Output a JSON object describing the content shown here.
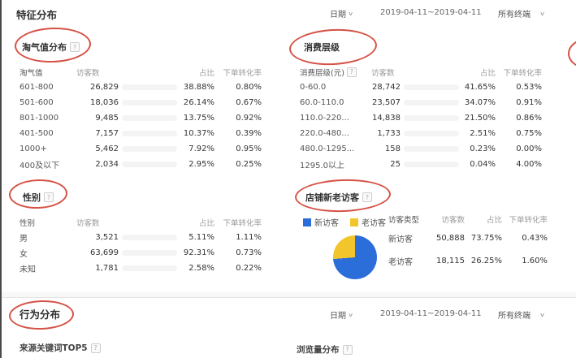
{
  "page": {
    "feature_header": "特征分布",
    "behavior_header": "行为分布"
  },
  "icons": {
    "help": "?",
    "chevron_down": "∨"
  },
  "filters": {
    "date_label": "日期",
    "date_range": "2019-04-11~2019-04-11",
    "terminal": "所有终端"
  },
  "annotations": {
    "color": "#ce3426",
    "circled_titles": [
      "淘气值分布",
      "消费层级",
      "性别",
      "店铺新老访客",
      "行为分布"
    ]
  },
  "sections": {
    "taoqi": {
      "title": "淘气值分布",
      "columns": [
        "淘气值",
        "访客数",
        "占比",
        "下单转化率"
      ],
      "rows": [
        {
          "range": "601-800",
          "visitors": "26,829",
          "bar_pct": 100,
          "share": "38.88%",
          "conversion": "0.80%"
        },
        {
          "range": "501-600",
          "visitors": "18,036",
          "bar_pct": 67,
          "share": "26.14%",
          "conversion": "0.67%"
        },
        {
          "range": "801-1000",
          "visitors": "9,485",
          "bar_pct": 35,
          "share": "13.75%",
          "conversion": "0.92%"
        },
        {
          "range": "401-500",
          "visitors": "7,157",
          "bar_pct": 27,
          "share": "10.37%",
          "conversion": "0.39%"
        },
        {
          "range": "1000+",
          "visitors": "5,462",
          "bar_pct": 20,
          "share": "7.92%",
          "conversion": "0.95%"
        },
        {
          "range": "400及以下",
          "visitors": "2,034",
          "bar_pct": 8,
          "share": "2.95%",
          "conversion": "0.25%"
        }
      ]
    },
    "consume": {
      "title": "消费层级",
      "columns": [
        "消费层级(元)",
        "访客数",
        "占比",
        "下单转化率"
      ],
      "rows": [
        {
          "range": "0-60.0",
          "visitors": "28,742",
          "bar_pct": 100,
          "share": "41.65%",
          "conversion": "0.53%"
        },
        {
          "range": "60.0-110.0",
          "visitors": "23,507",
          "bar_pct": 82,
          "share": "34.07%",
          "conversion": "0.91%"
        },
        {
          "range": "110.0-220...",
          "visitors": "14,838",
          "bar_pct": 52,
          "share": "21.50%",
          "conversion": "0.86%"
        },
        {
          "range": "220.0-480...",
          "visitors": "1,733",
          "bar_pct": 6,
          "share": "2.51%",
          "conversion": "0.75%"
        },
        {
          "range": "480.0-1295...",
          "visitors": "158",
          "bar_pct": 0.6,
          "share": "0.23%",
          "conversion": "0.00%"
        },
        {
          "range": "1295.0以上",
          "visitors": "25",
          "bar_pct": 0.2,
          "share": "0.04%",
          "conversion": "4.00%"
        }
      ]
    },
    "gender": {
      "title": "性别",
      "columns": [
        "性别",
        "访客数",
        "占比",
        "下单转化率"
      ],
      "rows": [
        {
          "range": "男",
          "visitors": "3,521",
          "bar_pct": 6,
          "share": "5.11%",
          "conversion": "1.11%"
        },
        {
          "range": "女",
          "visitors": "63,699",
          "bar_pct": 100,
          "share": "92.31%",
          "conversion": "0.73%"
        },
        {
          "range": "未知",
          "visitors": "1,781",
          "bar_pct": 3,
          "share": "2.58%",
          "conversion": "0.22%"
        }
      ]
    },
    "visitor_type": {
      "title": "店铺新老访客",
      "legend": [
        {
          "label": "新访客",
          "color": "#2b6dd9"
        },
        {
          "label": "老访客",
          "color": "#f3c52d"
        }
      ],
      "columns": [
        "访客类型",
        "访客数",
        "占比",
        "下单转化率"
      ],
      "rows": [
        {
          "type": "新访客",
          "visitors": "50,888",
          "share": "73.75%",
          "conversion": "0.43%"
        },
        {
          "type": "老访客",
          "visitors": "18,115",
          "share": "26.25%",
          "conversion": "1.60%"
        }
      ]
    },
    "keywords_title": "来源关键词TOP5",
    "pageview_title": "浏览量分布"
  },
  "chart_data": [
    {
      "type": "pie",
      "title": "店铺新老访客",
      "labels": [
        "新访客",
        "老访客"
      ],
      "values": [
        73.75,
        26.25
      ],
      "colors": [
        "#2b6dd9",
        "#f3c52d"
      ],
      "legend_position": "top-left"
    },
    {
      "type": "bar",
      "title": "淘气值分布",
      "categories": [
        "601-800",
        "501-600",
        "801-1000",
        "401-500",
        "1000+",
        "400及以下"
      ],
      "values": [
        26829,
        18036,
        9485,
        7157,
        5462,
        2034
      ],
      "xlabel": "淘气值",
      "ylabel": "访客数"
    },
    {
      "type": "bar",
      "title": "消费层级",
      "categories": [
        "0-60.0",
        "60.0-110.0",
        "110.0-220",
        "220.0-480",
        "480.0-1295",
        "1295.0以上"
      ],
      "values": [
        28742,
        23507,
        14838,
        1733,
        158,
        25
      ],
      "xlabel": "消费层级(元)",
      "ylabel": "访客数"
    },
    {
      "type": "bar",
      "title": "性别",
      "categories": [
        "男",
        "女",
        "未知"
      ],
      "values": [
        3521,
        63699,
        1781
      ],
      "xlabel": "性别",
      "ylabel": "访客数"
    }
  ]
}
